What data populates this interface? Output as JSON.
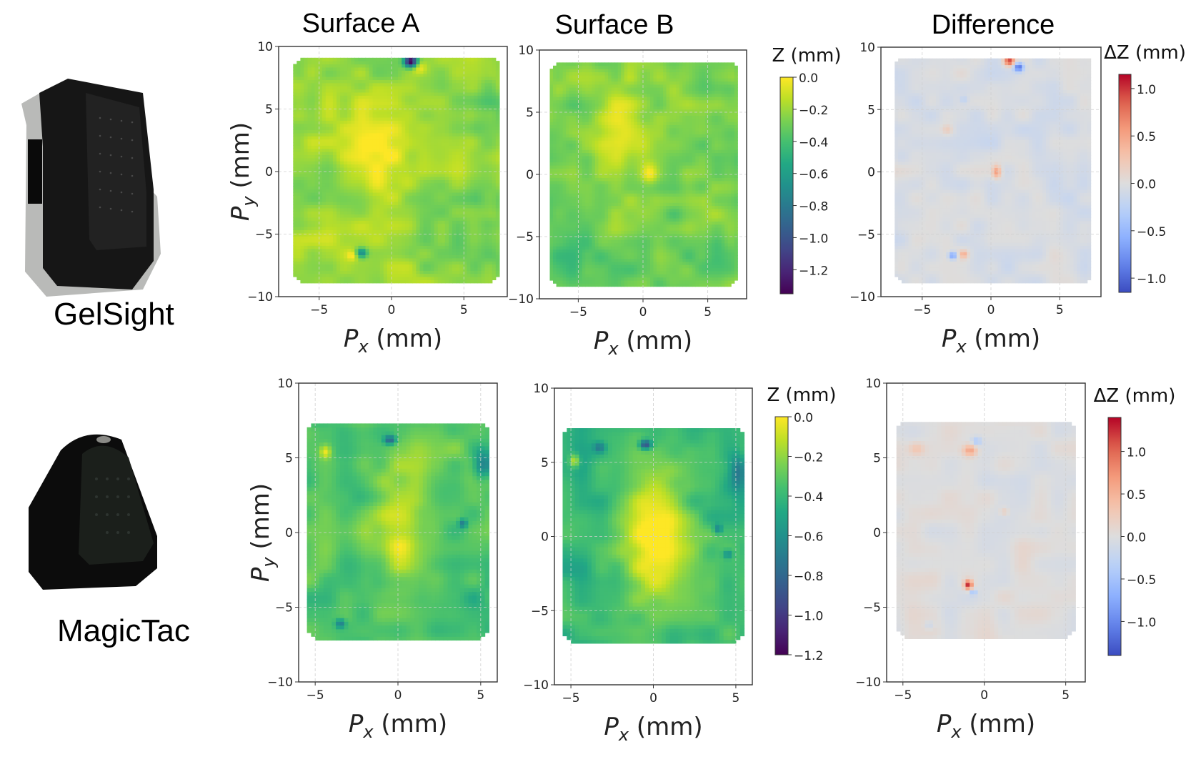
{
  "figure": {
    "column_titles": [
      "Surface A",
      "Surface B",
      "Difference"
    ],
    "sensors": [
      {
        "name": "GelSight",
        "photo": "gelsight-sensor-photo"
      },
      {
        "name": "MagicTac",
        "photo": "magictac-sensor-photo"
      }
    ],
    "xlabel_main": "P",
    "xlabel_sub": "x",
    "xlabel_unit": " (mm)",
    "ylabel_main": "P",
    "ylabel_sub": "y",
    "ylabel_unit": " (mm)"
  },
  "chart_data": [
    {
      "id": "gelsight-surface-a",
      "type": "heatmap",
      "row": "GelSight",
      "title": "Surface A",
      "xlabel": "Px (mm)",
      "ylabel": "Py (mm)",
      "xlim": [
        -7.8,
        8.0
      ],
      "ylim": [
        -10,
        10
      ],
      "xticks": [
        -5,
        0,
        5
      ],
      "yticks": [
        10,
        5,
        0,
        -5,
        -10
      ],
      "grid": true,
      "colormap": "viridis",
      "clim": [
        -1.35,
        0.0
      ],
      "region": {
        "x": [
          -6.8,
          7.3
        ],
        "y": [
          -8.9,
          9.0
        ]
      },
      "base_value": -0.2,
      "features": [
        {
          "x": -1.0,
          "y": 1.5,
          "rx": 2.2,
          "ry": 4.5,
          "value": 0.15
        },
        {
          "x": 1.2,
          "y": 8.7,
          "rx": 0.45,
          "ry": 0.45,
          "value": -1.2
        },
        {
          "x": 1.8,
          "y": 8.2,
          "rx": 0.5,
          "ry": 0.5,
          "value": 0.2
        },
        {
          "x": -2.2,
          "y": -6.6,
          "rx": 0.4,
          "ry": 0.4,
          "value": -0.55
        },
        {
          "x": -2.8,
          "y": -6.8,
          "rx": 0.4,
          "ry": 0.4,
          "value": 0.2
        },
        {
          "x": 5.5,
          "y": -6.0,
          "rx": 2.0,
          "ry": 3.0,
          "value": -0.15
        },
        {
          "x": 6.5,
          "y": 2.0,
          "rx": 1.0,
          "ry": 5.0,
          "value": -0.12
        }
      ]
    },
    {
      "id": "gelsight-surface-b",
      "type": "heatmap",
      "row": "GelSight",
      "title": "Surface B",
      "xlabel": "Px (mm)",
      "ylabel": "",
      "xlim": [
        -8.0,
        8.0
      ],
      "ylim": [
        -10,
        10
      ],
      "xticks": [
        -5,
        0,
        5
      ],
      "yticks": [
        10,
        5,
        0,
        -5,
        -10
      ],
      "grid": true,
      "colormap": "viridis",
      "clim": [
        -1.35,
        0.0
      ],
      "colorbar": {
        "title": "Z (mm)",
        "ticks": [
          0.0,
          -0.2,
          -0.4,
          -0.6,
          -0.8,
          -1.0,
          -1.2
        ],
        "tick_labels": [
          "0.0",
          "−0.2",
          "−0.4",
          "−0.6",
          "−0.8",
          "−1.0",
          "−1.2"
        ]
      },
      "region": {
        "x": [
          -7.2,
          7.2
        ],
        "y": [
          -9.0,
          8.9
        ]
      },
      "base_value": -0.28,
      "features": [
        {
          "x": -2.0,
          "y": 3.5,
          "rx": 1.8,
          "ry": 3.5,
          "value": 0.25
        },
        {
          "x": 0.4,
          "y": 0.0,
          "rx": 0.6,
          "ry": 0.8,
          "value": 0.25
        },
        {
          "x": 5.5,
          "y": -7.0,
          "rx": 2.5,
          "ry": 2.0,
          "value": -0.18
        },
        {
          "x": -5.5,
          "y": -7.0,
          "rx": 2.0,
          "ry": 2.0,
          "value": -0.1
        }
      ]
    },
    {
      "id": "gelsight-difference",
      "type": "heatmap",
      "row": "GelSight",
      "title": "Difference",
      "xlabel": "Px (mm)",
      "ylabel": "",
      "xlim": [
        -8.0,
        8.0
      ],
      "ylim": [
        -10,
        10
      ],
      "xticks": [
        -5,
        0,
        5
      ],
      "yticks": [
        10,
        5,
        0,
        -5,
        -10
      ],
      "grid": true,
      "colormap": "coolwarm",
      "clim": [
        -1.15,
        1.15
      ],
      "colorbar": {
        "title": "ΔZ (mm)",
        "ticks": [
          1.0,
          0.5,
          0.0,
          -0.5,
          -1.0
        ],
        "tick_labels": [
          "1.0",
          "0.5",
          "0.0",
          "−0.5",
          "−1.0"
        ]
      },
      "region": {
        "x": [
          -7.0,
          7.2
        ],
        "y": [
          -8.9,
          9.1
        ]
      },
      "base_value": -0.05,
      "features": [
        {
          "x": 1.2,
          "y": 8.8,
          "rx": 0.4,
          "ry": 0.4,
          "value": 1.1
        },
        {
          "x": 1.9,
          "y": 8.3,
          "rx": 0.35,
          "ry": 0.35,
          "value": -0.95
        },
        {
          "x": 0.3,
          "y": -0.1,
          "rx": 0.3,
          "ry": 0.5,
          "value": 0.55
        },
        {
          "x": -2.9,
          "y": -6.8,
          "rx": 0.3,
          "ry": 0.3,
          "value": -0.7
        },
        {
          "x": -2.1,
          "y": -6.7,
          "rx": 0.3,
          "ry": 0.3,
          "value": 0.4
        },
        {
          "x": -3.3,
          "y": 3.3,
          "rx": 0.4,
          "ry": 0.4,
          "value": 0.2
        },
        {
          "x": -2.1,
          "y": 5.7,
          "rx": 0.3,
          "ry": 0.3,
          "value": -0.2
        }
      ]
    },
    {
      "id": "magictac-surface-a",
      "type": "heatmap",
      "row": "MagicTac",
      "title": "Surface A",
      "xlabel": "Px (mm)",
      "ylabel": "Py (mm)",
      "xlim": [
        -6.0,
        6.0
      ],
      "ylim": [
        -10,
        10
      ],
      "xticks": [
        -5,
        0,
        5
      ],
      "yticks": [
        10,
        5,
        0,
        -5,
        -10
      ],
      "grid": true,
      "colormap": "viridis",
      "clim": [
        -1.2,
        0.0
      ],
      "region": {
        "x": [
          -5.5,
          5.4
        ],
        "y": [
          -7.2,
          7.3
        ]
      },
      "base_value": -0.35,
      "features": [
        {
          "x": 0.0,
          "y": 0.5,
          "rx": 1.8,
          "ry": 5.0,
          "value": 0.35
        },
        {
          "x": -4.5,
          "y": 5.3,
          "rx": 0.35,
          "ry": 0.45,
          "value": 0.3
        },
        {
          "x": -0.6,
          "y": 6.1,
          "rx": 0.35,
          "ry": 0.3,
          "value": -0.5
        },
        {
          "x": 5.0,
          "y": 4.5,
          "rx": 0.6,
          "ry": 1.0,
          "value": -0.35
        },
        {
          "x": 3.8,
          "y": 0.5,
          "rx": 0.25,
          "ry": 0.3,
          "value": -0.35
        },
        {
          "x": -3.6,
          "y": -6.2,
          "rx": 0.3,
          "ry": 0.3,
          "value": -0.35
        }
      ]
    },
    {
      "id": "magictac-surface-b",
      "type": "heatmap",
      "row": "MagicTac",
      "title": "Surface B",
      "xlabel": "Px (mm)",
      "ylabel": "",
      "xlim": [
        -6.0,
        6.0
      ],
      "ylim": [
        -10,
        10
      ],
      "xticks": [
        -5,
        0,
        5
      ],
      "yticks": [
        10,
        5,
        0,
        -5,
        -10
      ],
      "grid": true,
      "colormap": "viridis",
      "clim": [
        -1.2,
        0.0
      ],
      "colorbar": {
        "title": "Z (mm)",
        "ticks": [
          0.0,
          -0.2,
          -0.4,
          -0.6,
          -0.8,
          -1.0,
          -1.2
        ],
        "tick_labels": [
          "0.0",
          "−0.2",
          "−0.4",
          "−0.6",
          "−0.8",
          "−1.0",
          "−1.2"
        ]
      },
      "region": {
        "x": [
          -5.5,
          5.4
        ],
        "y": [
          -7.2,
          7.3
        ]
      },
      "base_value": -0.38,
      "features": [
        {
          "x": 0.0,
          "y": 0.0,
          "rx": 2.0,
          "ry": 5.2,
          "value": 0.4
        },
        {
          "x": -4.9,
          "y": 5.0,
          "rx": 0.3,
          "ry": 0.45,
          "value": 0.35
        },
        {
          "x": -0.6,
          "y": 6.1,
          "rx": 0.35,
          "ry": 0.3,
          "value": -0.6
        },
        {
          "x": -3.4,
          "y": 5.9,
          "rx": 0.35,
          "ry": 0.35,
          "value": -0.3
        },
        {
          "x": 5.0,
          "y": 4.3,
          "rx": 0.5,
          "ry": 1.2,
          "value": -0.3
        },
        {
          "x": 3.8,
          "y": 0.4,
          "rx": 0.25,
          "ry": 0.3,
          "value": -0.3
        },
        {
          "x": 4.4,
          "y": -1.3,
          "rx": 0.3,
          "ry": 0.3,
          "value": -0.3
        }
      ]
    },
    {
      "id": "magictac-difference",
      "type": "heatmap",
      "row": "MagicTac",
      "title": "Difference",
      "xlabel": "Px (mm)",
      "ylabel": "",
      "xlim": [
        -6.0,
        6.2
      ],
      "ylim": [
        -10,
        10
      ],
      "xticks": [
        -5,
        0,
        5
      ],
      "yticks": [
        10,
        5,
        0,
        -5,
        -10
      ],
      "grid": true,
      "colormap": "coolwarm",
      "clim": [
        -1.4,
        1.4
      ],
      "colorbar": {
        "title": "ΔZ (mm)",
        "ticks": [
          1.0,
          0.5,
          0.0,
          -0.5,
          -1.0
        ],
        "tick_labels": [
          "1.0",
          "0.5",
          "0.0",
          "−0.5",
          "−1.0"
        ]
      },
      "region": {
        "x": [
          -5.4,
          5.4
        ],
        "y": [
          -7.1,
          7.4
        ]
      },
      "base_value": 0.0,
      "features": [
        {
          "x": -1.0,
          "y": 5.4,
          "rx": 0.45,
          "ry": 0.4,
          "value": 0.65
        },
        {
          "x": -0.6,
          "y": 6.0,
          "rx": 0.3,
          "ry": 0.3,
          "value": -0.4
        },
        {
          "x": -4.3,
          "y": 5.5,
          "rx": 0.5,
          "ry": 0.45,
          "value": 0.35
        },
        {
          "x": -1.1,
          "y": -3.6,
          "rx": 0.25,
          "ry": 0.3,
          "value": 1.25
        },
        {
          "x": -0.8,
          "y": -4.1,
          "rx": 0.2,
          "ry": 0.2,
          "value": -0.45
        },
        {
          "x": 1.1,
          "y": 1.3,
          "rx": 0.3,
          "ry": 0.3,
          "value": 0.25
        },
        {
          "x": -3.5,
          "y": -6.3,
          "rx": 0.3,
          "ry": 0.3,
          "value": -0.2
        }
      ]
    }
  ]
}
